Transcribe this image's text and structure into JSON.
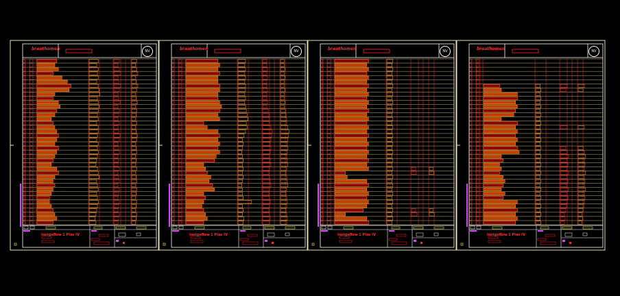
{
  "view": {
    "background": "#000000"
  },
  "colors": {
    "frame": "#e8e0a8",
    "line": "#f0e68c",
    "red": "#ff2a2a",
    "dark_red": "#8b0000",
    "orange": "#ff8c2a",
    "magenta": "#e040ff",
    "yellow": "#ffff40",
    "white": "#ffffff"
  },
  "sheets": [
    {
      "logo_text": "breathomen",
      "title_block_text": "Instgeflow 1 Plus IV",
      "seal_icon": "seal-icon",
      "row_count": 40,
      "bars_a": [
        0.55,
        0.5,
        0.6,
        0.45,
        0.7,
        0.85,
        0.95,
        0.9,
        0.5,
        0.45,
        0.6,
        0.65,
        0.55,
        0.5,
        0.4,
        0.45,
        0.5,
        0.55,
        0.6,
        0.55,
        0.5,
        0.6,
        0.55,
        0.5,
        0.45,
        0.4,
        0.55,
        0.6,
        0.5,
        0.45,
        0.5,
        0.45,
        0.4,
        0.35,
        0.35,
        0.4,
        0.45,
        0.5,
        0.55,
        0.45
      ],
      "bars_b": [
        0.6,
        0.5,
        0.6,
        0.55,
        0.6,
        0.5,
        0.6,
        0.65,
        0.7,
        0.55,
        0.6,
        0.65,
        0.6,
        0.55,
        0.6,
        0.5,
        0.6,
        0.6,
        0.55,
        0.5,
        0.6,
        0.55,
        0.6,
        0.55,
        0.5,
        0.45,
        0.55,
        0.6,
        0.65,
        0.5,
        0.55,
        0.6,
        0.5,
        0.55,
        0.6,
        0.55,
        0.5,
        0.45,
        0.4,
        0.45
      ],
      "bars_c": [
        0.4,
        0.3,
        0.4,
        0.5,
        0.3,
        0.35,
        0.5,
        0.4,
        0.3,
        0.35,
        0.45,
        0.3,
        0.4,
        0.35,
        0.3,
        0.4,
        0.3,
        0.35,
        0.45,
        0.4,
        0.3,
        0.35,
        0.4,
        0.3,
        0.35,
        0.3,
        0.4,
        0.3,
        0.35,
        0.4,
        0.3,
        0.4,
        0.35,
        0.3,
        0.4,
        0.35,
        0.3,
        0.4,
        0.35,
        0.3
      ]
    },
    {
      "logo_text": "breathomen",
      "title_block_text": "Instgeflow 1 Plus IV",
      "seal_icon": "seal-icon",
      "row_count": 40,
      "bars_a": [
        0.9,
        0.95,
        0.9,
        0.95,
        0.9,
        0.9,
        0.95,
        0.95,
        0.9,
        0.9,
        0.95,
        1.0,
        0.95,
        0.9,
        0.95,
        0.5,
        0.6,
        0.9,
        0.95,
        0.9,
        0.95,
        0.9,
        0.95,
        0.85,
        0.8,
        0.5,
        0.55,
        0.6,
        0.7,
        0.65,
        0.75,
        0.8,
        0.5,
        0.55,
        0.5,
        0.45,
        0.5,
        0.55,
        0.6,
        0.5
      ],
      "bars_b": [
        0.5,
        0.45,
        0.5,
        0.45,
        0.5,
        0.45,
        0.5,
        0.5,
        0.45,
        0.5,
        0.45,
        0.5,
        0.55,
        0.6,
        0.65,
        0.55,
        0.6,
        0.5,
        0.4,
        0.3,
        0.35,
        0.3,
        0.25,
        0.3,
        0.35,
        0.3,
        0.35,
        0.3,
        0.35,
        0.3,
        0.25,
        0.3,
        0.3,
        0.35,
        0.9,
        0.3,
        0.35,
        0.3,
        0.4,
        0.35
      ],
      "bars_c": [
        0.3,
        0.3,
        0.35,
        0.3,
        0.35,
        0.3,
        0.3,
        0.35,
        0.3,
        0.3,
        0.35,
        0.3,
        0.4,
        0.45,
        0.5,
        0.5,
        0.6,
        0.7,
        0.65,
        0.6,
        0.55,
        0.6,
        0.55,
        0.5,
        0.55,
        0.6,
        0.5,
        0.45,
        0.5,
        0.55,
        0.6,
        0.5,
        0.45,
        0.5,
        0.55,
        0.5,
        0.45,
        0.5,
        0.55,
        0.5
      ]
    },
    {
      "logo_text": "breathomen",
      "title_block_text": "Instgeflow 1 Plus IV",
      "seal_icon": "seal-icon",
      "row_count": 40,
      "bars_a": [
        0.95,
        0.9,
        0.95,
        0.9,
        0.95,
        0.9,
        0.95,
        0.9,
        0.95,
        0.9,
        0.95,
        0.9,
        0.95,
        0.9,
        0.95,
        0.9,
        0.95,
        0.9,
        0.95,
        0.9,
        0.95,
        0.9,
        0.95,
        0.9,
        0.95,
        0.9,
        0.95,
        0.3,
        0.35,
        0.9,
        0.95,
        0.9,
        0.95,
        0.9,
        0.95,
        0.9,
        0.8,
        0.3,
        0.9,
        0.95
      ],
      "bars_b": [
        0.4,
        0.35,
        0.4,
        0.35,
        0.4,
        0.35,
        0.4,
        0.35,
        0.4,
        0.35,
        0.4,
        0.35,
        0.4,
        0.35,
        0.4,
        0.35,
        0.4,
        0.35,
        0.4,
        0.35,
        0.4,
        0.35,
        0.4,
        0.35,
        0.4,
        0.35,
        0.4,
        0.35,
        0.4,
        0.35,
        0.4,
        0.35,
        0.4,
        0.35,
        0.4,
        0.35,
        0.4,
        0.35,
        0.4,
        0.35
      ],
      "bars_c": [
        0,
        0,
        0,
        0,
        0,
        0,
        0,
        0,
        0,
        0,
        0,
        0,
        0,
        0,
        0,
        0,
        0,
        0,
        0,
        0,
        0,
        0,
        0,
        0,
        0,
        0,
        0.3,
        0.35,
        0,
        0,
        0,
        0,
        0,
        0,
        0,
        0,
        0.3,
        0.4,
        0,
        0
      ]
    },
    {
      "logo_text": "breathomen",
      "title_block_text": "Instgeflow 1 Plus IV",
      "seal_icon": "seal-icon",
      "row_count": 40,
      "bars_a": [
        0,
        0,
        0,
        0,
        0,
        0,
        0.45,
        0.5,
        0.95,
        0.95,
        0.9,
        0.95,
        0.9,
        0.85,
        0.5,
        0.95,
        0.9,
        0.95,
        0.9,
        0.95,
        0.9,
        0.95,
        1.0,
        0.5,
        0.55,
        0.45,
        0.5,
        0.45,
        0.55,
        0.6,
        0.55,
        0.5,
        0.6,
        0.55,
        0.95,
        0.9,
        0.95,
        0.9,
        0.95,
        0.9
      ],
      "bars_b": [
        0,
        0,
        0,
        0,
        0,
        0,
        0.3,
        0.35,
        0.3,
        0.35,
        0.3,
        0.35,
        0.3,
        0.35,
        0.3,
        0.35,
        0.3,
        0.35,
        0.3,
        0.35,
        0.3,
        0.35,
        0.3,
        0.35,
        0.3,
        0.35,
        0.3,
        0.35,
        0.3,
        0.35,
        0.3,
        0.35,
        0.3,
        0.35,
        0.3,
        0.35,
        0.3,
        0.35,
        0.3,
        0.35
      ],
      "bars_c": [
        0,
        0,
        0,
        0,
        0,
        0,
        0.5,
        0.4,
        0,
        0,
        0,
        0,
        0,
        0,
        0,
        0,
        0.5,
        0,
        0,
        0,
        0,
        0.4,
        0.5,
        0.6,
        0.5,
        0.55,
        0.5,
        0.6,
        0.5,
        0.55,
        0.5,
        0.6,
        0.5,
        0.55,
        0.5,
        0.45,
        0.4,
        0.3,
        0.35,
        0.3
      ]
    }
  ]
}
